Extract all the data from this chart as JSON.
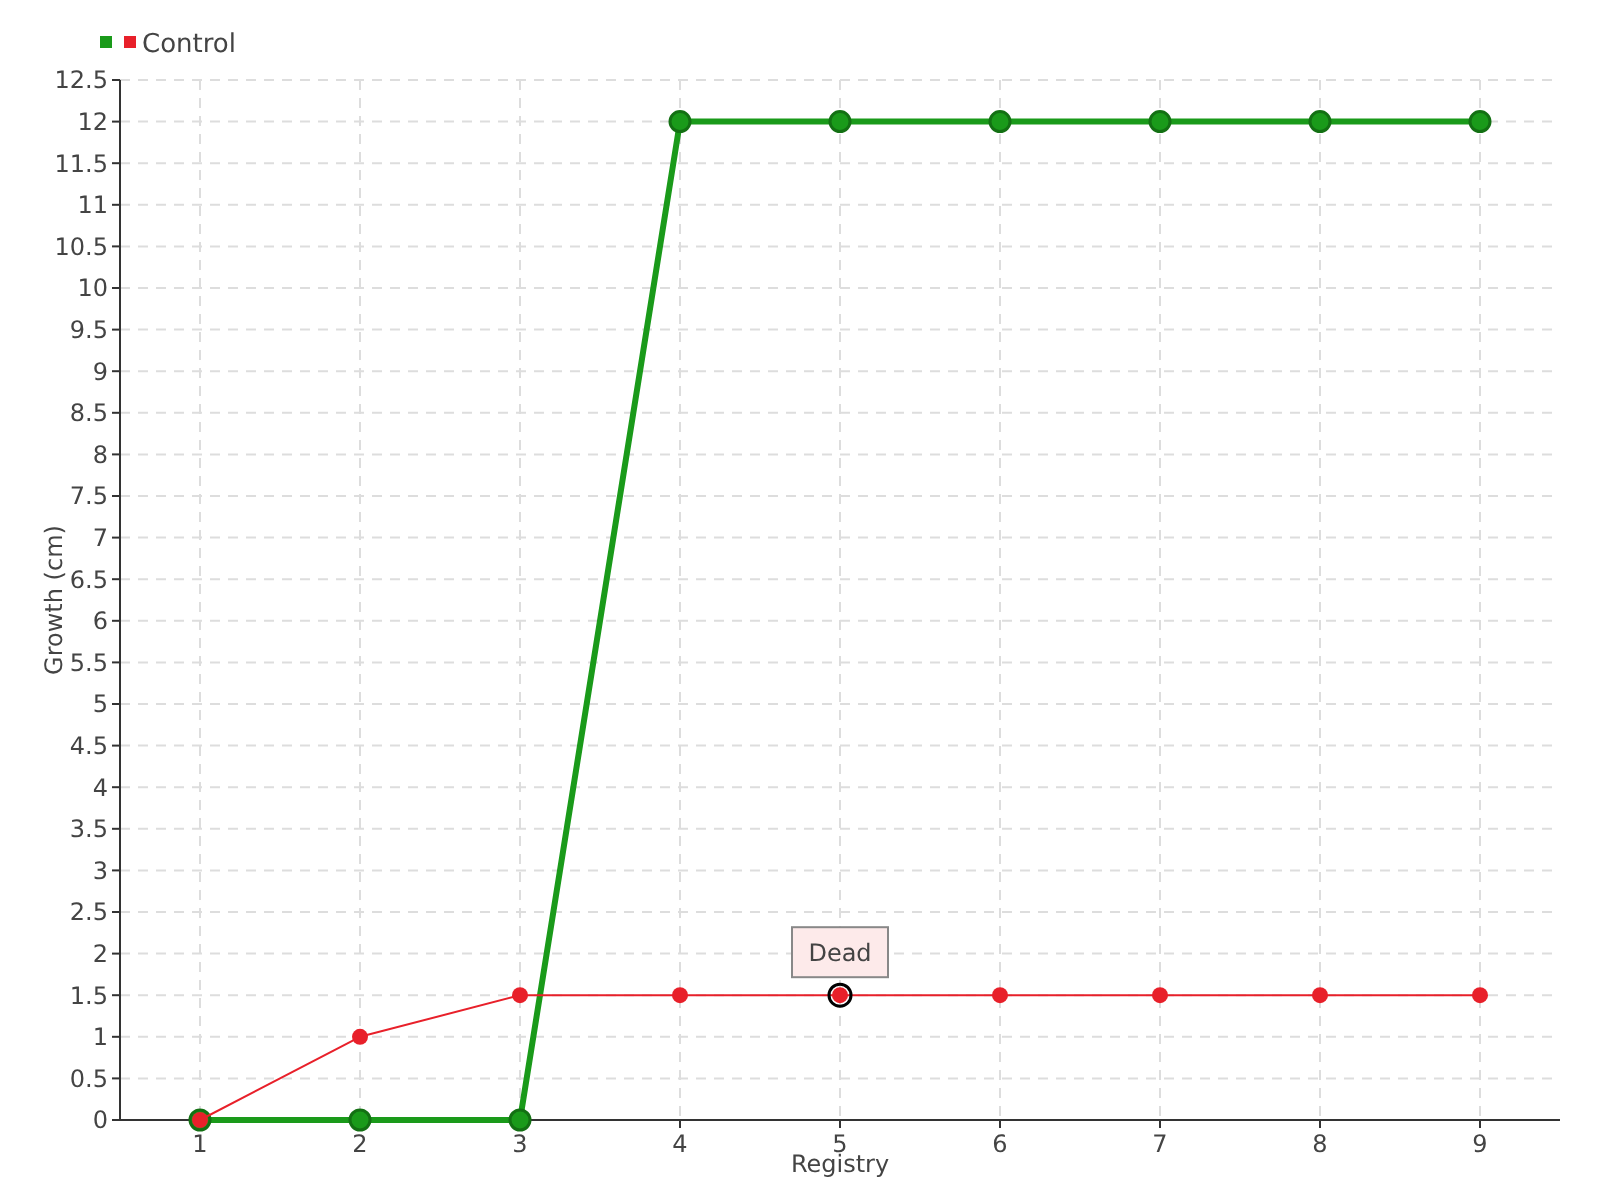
{
  "chart_data": {
    "type": "line",
    "xlabel": "Registry",
    "ylabel": "Growth (cm)",
    "x": [
      1,
      2,
      3,
      4,
      5,
      6,
      7,
      8,
      9
    ],
    "series": [
      {
        "color": "#1a9a1a",
        "values": [
          0,
          0,
          0,
          12,
          12,
          12,
          12,
          12,
          12
        ]
      },
      {
        "name": "Control",
        "color": "#e8202a",
        "values": [
          0,
          1,
          1.5,
          1.5,
          1.5,
          1.5,
          1.5,
          1.5,
          1.5
        ]
      }
    ],
    "xlim": [
      0.5,
      9.5
    ],
    "xticks": [
      1,
      2,
      3,
      4,
      5,
      6,
      7,
      8,
      9
    ],
    "ylim": [
      0,
      12.5
    ],
    "yticks": [
      0,
      0.5,
      1,
      1.5,
      2,
      2.5,
      3,
      3.5,
      4,
      4.5,
      5,
      5.5,
      6,
      6.5,
      7,
      7.5,
      8,
      8.5,
      9,
      9.5,
      10,
      10.5,
      11,
      11.5,
      12,
      12.5
    ],
    "grid": true,
    "legend": "top left",
    "marker": "circle",
    "line_style": "solid",
    "annotations": [
      {
        "text": "Dead",
        "x": 5,
        "y": 1.5
      }
    ]
  }
}
